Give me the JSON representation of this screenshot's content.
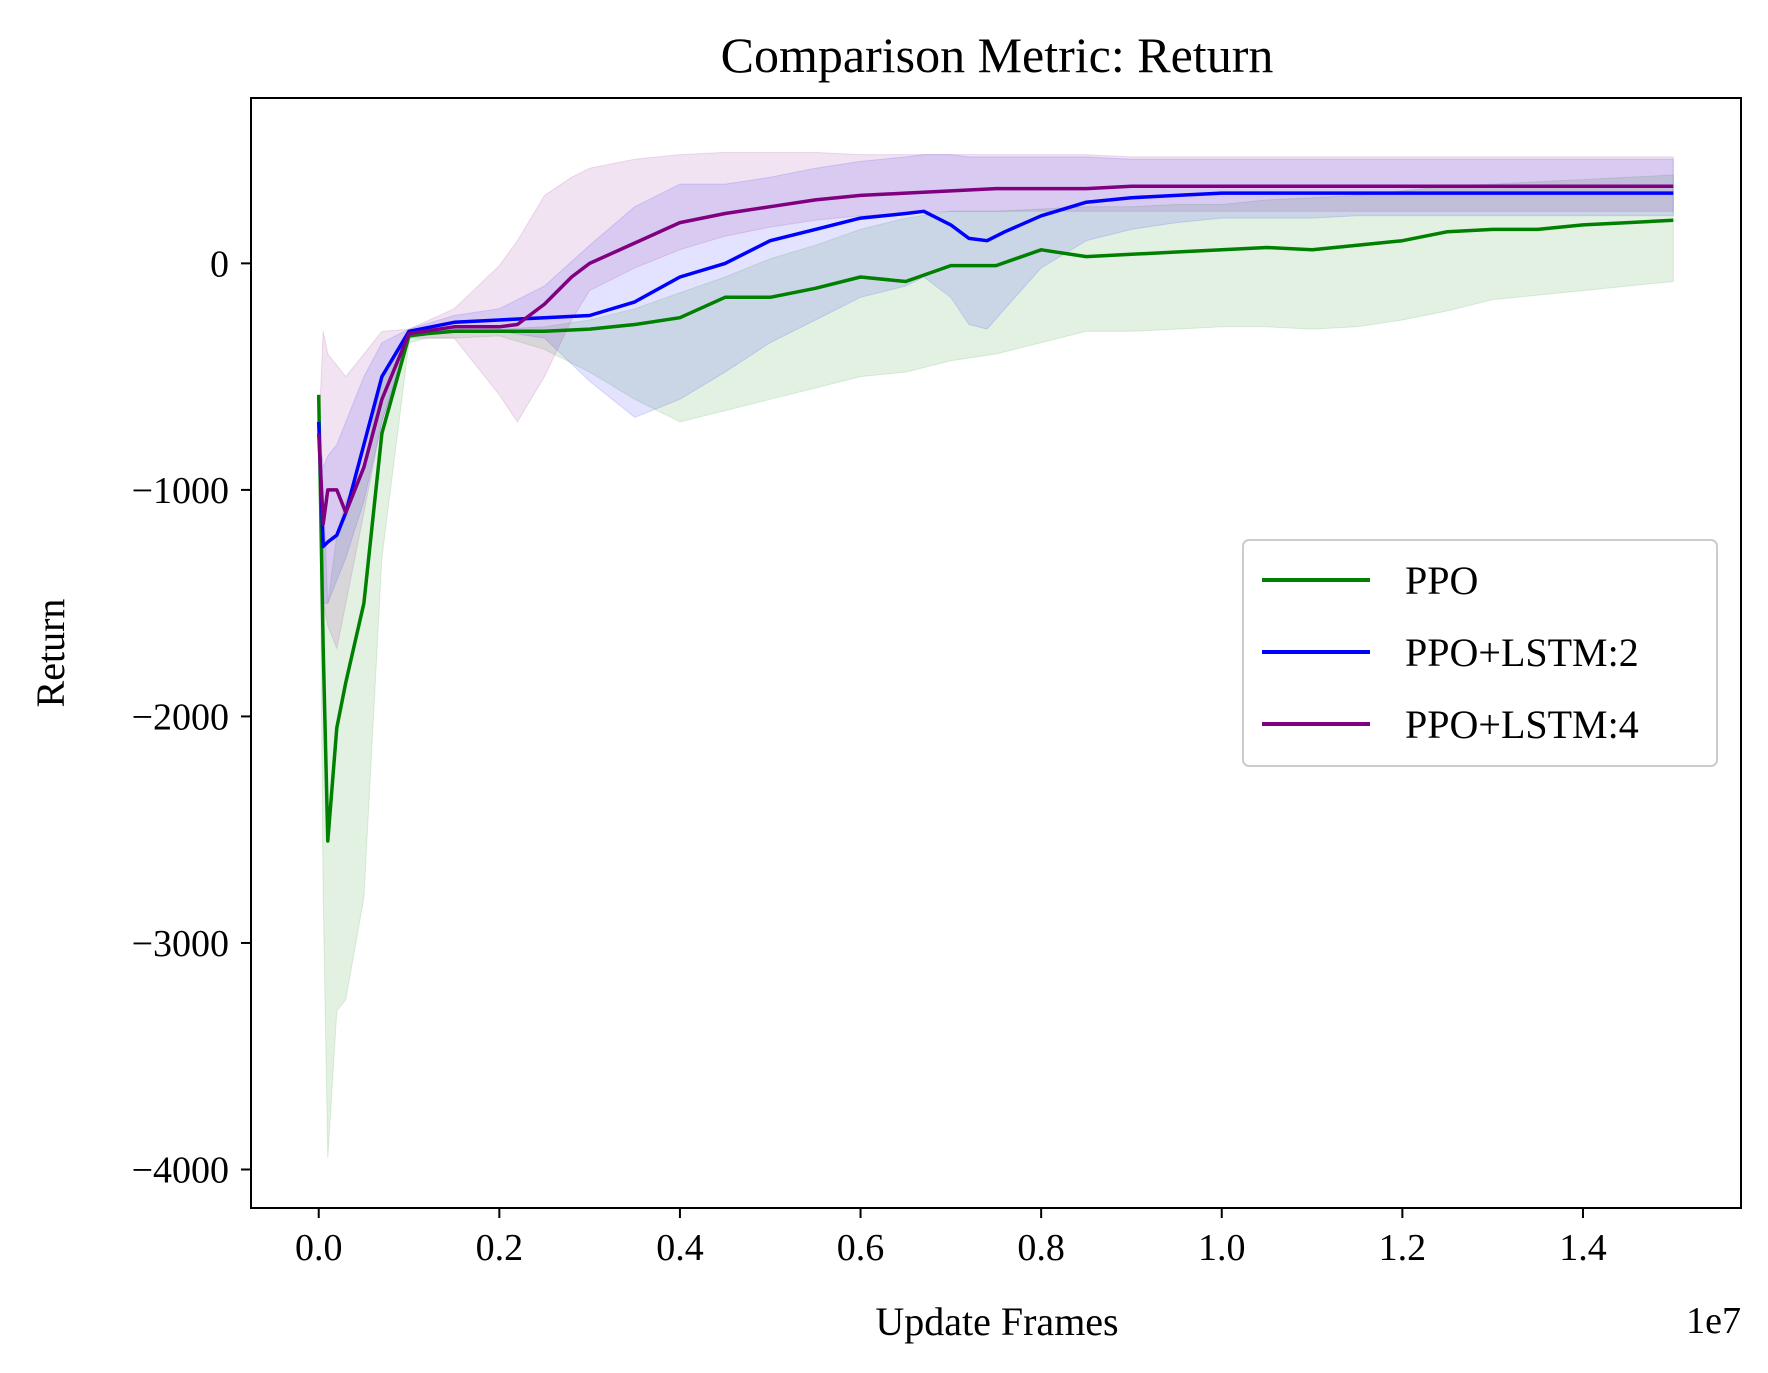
{
  "chart_data": {
    "type": "line",
    "title": "Comparison Metric: Return",
    "xlabel": "Update Frames",
    "ylabel": "Return",
    "x_offset_label": "1e7",
    "xlim": [
      -0.075,
      1.575
    ],
    "ylim": [
      -4170,
      730
    ],
    "xticks": [
      0.0,
      0.2,
      0.4,
      0.6,
      0.8,
      1.0,
      1.2,
      1.4
    ],
    "xtick_labels": [
      "0.0",
      "0.2",
      "0.4",
      "0.6",
      "0.8",
      "1.0",
      "1.2",
      "1.4"
    ],
    "yticks": [
      0,
      -1000,
      -2000,
      -3000,
      -4000
    ],
    "ytick_labels": [
      "0",
      "−1000",
      "−2000",
      "−3000",
      "−4000"
    ],
    "grid": false,
    "legend_position": "center-right",
    "series": [
      {
        "name": "PPO",
        "color": "#008000",
        "x": [
          0,
          0.005,
          0.01,
          0.02,
          0.03,
          0.05,
          0.07,
          0.1,
          0.12,
          0.15,
          0.2,
          0.25,
          0.3,
          0.35,
          0.4,
          0.45,
          0.5,
          0.55,
          0.6,
          0.65,
          0.7,
          0.75,
          0.8,
          0.85,
          0.9,
          0.95,
          1.0,
          1.05,
          1.1,
          1.15,
          1.2,
          1.25,
          1.3,
          1.35,
          1.4,
          1.45,
          1.5
        ],
        "y": [
          -580,
          -1700,
          -2550,
          -2050,
          -1850,
          -1500,
          -750,
          -320,
          -310,
          -300,
          -300,
          -300,
          -290,
          -270,
          -240,
          -150,
          -150,
          -110,
          -60,
          -80,
          -10,
          -10,
          60,
          30,
          40,
          50,
          60,
          70,
          60,
          80,
          100,
          140,
          150,
          150,
          170,
          180,
          190
        ],
        "lower": [
          -580,
          -2800,
          -3950,
          -3300,
          -3250,
          -2800,
          -1300,
          -350,
          -330,
          -330,
          -320,
          -380,
          -480,
          -600,
          -700,
          -650,
          -600,
          -550,
          -500,
          -480,
          -430,
          -400,
          -350,
          -300,
          -300,
          -290,
          -280,
          -280,
          -290,
          -280,
          -250,
          -210,
          -160,
          -140,
          -120,
          -100,
          -80
        ],
        "upper": [
          -580,
          -1000,
          -1500,
          -1200,
          -1050,
          -900,
          -500,
          -300,
          -300,
          -290,
          -290,
          -280,
          -250,
          -200,
          -130,
          -60,
          20,
          80,
          150,
          200,
          230,
          230,
          240,
          250,
          250,
          260,
          260,
          280,
          290,
          300,
          320,
          340,
          350,
          360,
          370,
          380,
          390
        ]
      },
      {
        "name": "PPO+LSTM:2",
        "color": "#0000ff",
        "x": [
          0,
          0.005,
          0.01,
          0.02,
          0.03,
          0.05,
          0.07,
          0.1,
          0.15,
          0.2,
          0.25,
          0.3,
          0.35,
          0.4,
          0.45,
          0.5,
          0.55,
          0.6,
          0.65,
          0.67,
          0.7,
          0.72,
          0.74,
          0.76,
          0.8,
          0.85,
          0.9,
          0.95,
          1.0,
          1.05,
          1.1,
          1.15,
          1.2,
          1.25,
          1.3,
          1.35,
          1.4,
          1.45,
          1.5
        ],
        "y": [
          -700,
          -1250,
          -1230,
          -1200,
          -1100,
          -800,
          -500,
          -300,
          -260,
          -250,
          -240,
          -230,
          -170,
          -60,
          0,
          100,
          150,
          200,
          220,
          230,
          170,
          110,
          100,
          140,
          210,
          270,
          290,
          300,
          310,
          310,
          310,
          310,
          310,
          310,
          310,
          310,
          310,
          310,
          310
        ],
        "lower": [
          -700,
          -1500,
          -1500,
          -1400,
          -1300,
          -1050,
          -700,
          -320,
          -290,
          -300,
          -330,
          -520,
          -680,
          -600,
          -480,
          -350,
          -250,
          -150,
          -100,
          -60,
          -150,
          -270,
          -290,
          -200,
          -20,
          100,
          150,
          180,
          200,
          200,
          200,
          210,
          210,
          210,
          210,
          210,
          210,
          210,
          210
        ],
        "upper": [
          -700,
          -900,
          -850,
          -800,
          -700,
          -500,
          -350,
          -290,
          -230,
          -200,
          -100,
          80,
          250,
          350,
          350,
          380,
          420,
          450,
          470,
          480,
          480,
          470,
          470,
          470,
          470,
          470,
          460,
          460,
          460,
          460,
          460,
          460,
          460,
          460,
          460,
          460,
          460,
          460,
          460
        ]
      },
      {
        "name": "PPO+LSTM:4",
        "color": "#800080",
        "x": [
          0,
          0.005,
          0.01,
          0.02,
          0.03,
          0.05,
          0.07,
          0.1,
          0.15,
          0.2,
          0.22,
          0.25,
          0.28,
          0.3,
          0.35,
          0.4,
          0.45,
          0.5,
          0.55,
          0.6,
          0.65,
          0.7,
          0.75,
          0.8,
          0.85,
          0.9,
          0.95,
          1.0,
          1.05,
          1.1,
          1.15,
          1.2,
          1.25,
          1.3,
          1.35,
          1.4,
          1.45,
          1.5
        ],
        "y": [
          -750,
          -1150,
          -1000,
          -1000,
          -1100,
          -900,
          -600,
          -310,
          -280,
          -280,
          -270,
          -180,
          -60,
          0,
          90,
          180,
          220,
          250,
          280,
          300,
          310,
          320,
          330,
          330,
          330,
          340,
          340,
          340,
          340,
          340,
          340,
          340,
          340,
          340,
          340,
          340,
          340,
          340
        ],
        "lower": [
          -750,
          -1500,
          -1600,
          -1700,
          -1500,
          -1100,
          -700,
          -330,
          -330,
          -580,
          -700,
          -500,
          -250,
          -120,
          -20,
          60,
          120,
          160,
          190,
          210,
          220,
          230,
          230,
          230,
          230,
          230,
          230,
          230,
          230,
          230,
          230,
          230,
          230,
          230,
          230,
          230,
          230,
          230
        ],
        "upper": [
          -750,
          -300,
          -400,
          -450,
          -500,
          -400,
          -300,
          -290,
          -200,
          -10,
          100,
          300,
          380,
          420,
          460,
          480,
          490,
          490,
          490,
          480,
          480,
          480,
          480,
          480,
          480,
          470,
          470,
          470,
          470,
          470,
          470,
          470,
          470,
          470,
          470,
          470,
          470,
          470
        ]
      }
    ]
  }
}
